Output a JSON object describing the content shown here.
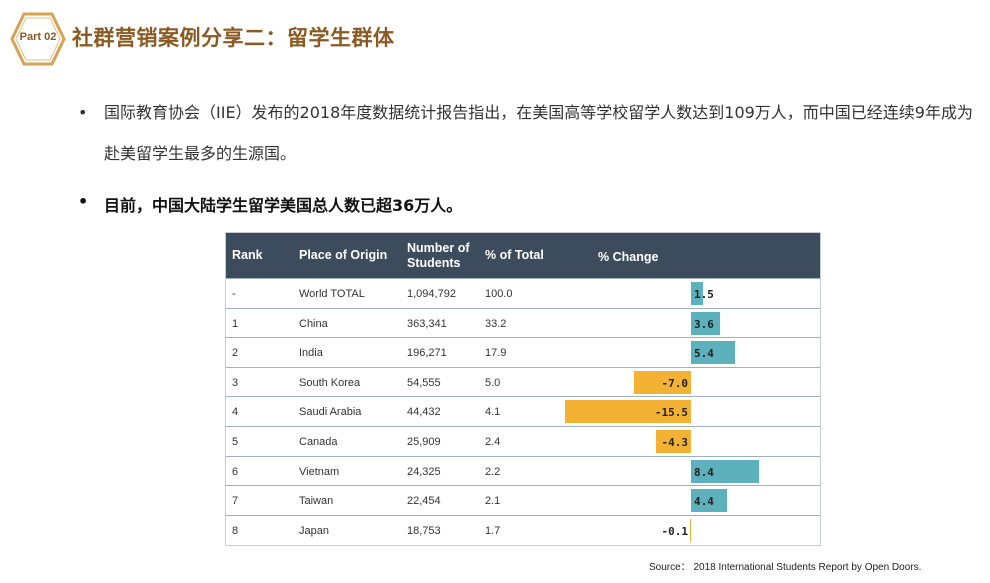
{
  "header": {
    "part_label": "Part 02",
    "title": "社群营销案例分享二：留学生群体"
  },
  "bullets": [
    "国际教育协会（IIE）发布的2018年度数据统计报告指出，在美国高等学校留学人数达到109万人，而中国已经连续9年成为赴美留学生最多的生源国。",
    "目前，中国大陆学生留学美国总人数已超36万人。"
  ],
  "bullet_symbol": "•",
  "table": {
    "columns": [
      "Rank",
      "Place of Origin",
      "Number of Students",
      "% of Total",
      "% Change"
    ],
    "column_lines": {
      "number": [
        "Number of",
        "Students"
      ]
    },
    "rows": [
      {
        "rank": "-",
        "place": "World TOTAL",
        "students": "1,094,792",
        "pct_total": "100.0",
        "change": 1.5,
        "change_label": "1.5"
      },
      {
        "rank": "1",
        "place": "China",
        "students": "363,341",
        "pct_total": "33.2",
        "change": 3.6,
        "change_label": "3.6"
      },
      {
        "rank": "2",
        "place": "India",
        "students": "196,271",
        "pct_total": "17.9",
        "change": 5.4,
        "change_label": "5.4"
      },
      {
        "rank": "3",
        "place": "South Korea",
        "students": "54,555",
        "pct_total": "5.0",
        "change": -7.0,
        "change_label": "-7.0"
      },
      {
        "rank": "4",
        "place": "Saudi Arabia",
        "students": "44,432",
        "pct_total": "4.1",
        "change": -15.5,
        "change_label": "-15.5"
      },
      {
        "rank": "5",
        "place": "Canada",
        "students": "25,909",
        "pct_total": "2.4",
        "change": -4.3,
        "change_label": "-4.3"
      },
      {
        "rank": "6",
        "place": "Vietnam",
        "students": "24,325",
        "pct_total": "2.2",
        "change": 8.4,
        "change_label": "8.4"
      },
      {
        "rank": "7",
        "place": "Taiwan",
        "students": "22,454",
        "pct_total": "2.1",
        "change": 4.4,
        "change_label": "4.4"
      },
      {
        "rank": "8",
        "place": "Japan",
        "students": "18,753",
        "pct_total": "1.7",
        "change": -0.1,
        "change_label": "-0.1"
      }
    ]
  },
  "source": "Source：  2018 International Students Report by Open Doors.",
  "colors": {
    "accent": "#8a5a22",
    "header_bg": "#3d4c5c",
    "positive": "#5db1bd",
    "negative": "#f3b233"
  }
}
